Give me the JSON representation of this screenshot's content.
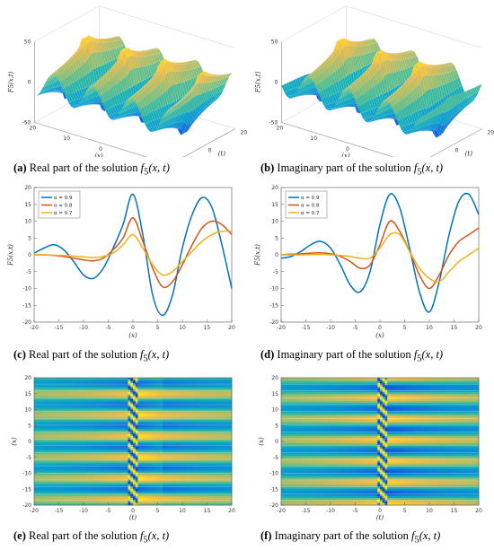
{
  "captions": {
    "a": {
      "tag": "(a)",
      "text": "Real part of the solution",
      "fx": "f",
      "sub": "5",
      "args": "(x, t)"
    },
    "b": {
      "tag": "(b)",
      "text": "Imaginary part of the solution",
      "fx": "f",
      "sub": "5",
      "args": "(x, t)"
    },
    "c": {
      "tag": "(c)",
      "text": "Real part of the solution",
      "fx": "f",
      "sub": "5",
      "args": "(x, t)"
    },
    "d": {
      "tag": "(d)",
      "text": "Imaginary part of the solution",
      "fx": "f",
      "sub": "5",
      "args": "(x, t)"
    },
    "e": {
      "tag": "(e)",
      "text": "Real part of the solution",
      "fx": "f",
      "sub": "5",
      "args": "(x, t)"
    },
    "f": {
      "tag": "(f)",
      "text": "Imaginary part of the solution",
      "fx": "f",
      "sub": "5",
      "args": "(x, t)"
    }
  },
  "chart_data": [
    {
      "id": "a",
      "type": "surface",
      "zlabel": "F5(x,t)",
      "xlabel": "(x)",
      "ylabel": "(t)",
      "zticks": [
        "50",
        "0",
        "-50"
      ],
      "xticks": [
        "20",
        "10",
        "0",
        "-10",
        "-20"
      ],
      "yticks": [
        "-20",
        "0",
        "20"
      ],
      "zlim": [
        -50,
        50
      ]
    },
    {
      "id": "b",
      "type": "surface",
      "zlabel": "F5(x,t)",
      "xlabel": "(x)",
      "ylabel": "(t)",
      "zticks": [
        "50",
        "0",
        "-50"
      ],
      "xticks": [
        "20",
        "10",
        "0",
        "-10",
        "-20"
      ],
      "yticks": [
        "-20",
        "0",
        "20"
      ],
      "zlim": [
        -50,
        50
      ]
    },
    {
      "id": "c",
      "type": "line",
      "xlabel": "(x)",
      "ylabel": "F5(x,t)",
      "xlim": [
        -20,
        20
      ],
      "ylim": [
        -20,
        20
      ],
      "xticks": [
        "-20",
        "-15",
        "-10",
        "-5",
        "0",
        "5",
        "10",
        "15",
        "20"
      ],
      "yticks": [
        "20",
        "15",
        "10",
        "5",
        "0",
        "-5",
        "-10",
        "-15",
        "-20"
      ],
      "legend": "top-left",
      "series": [
        {
          "name": "α = 0.9",
          "color": "#0072BD",
          "x": [
            -20,
            -18,
            -16,
            -14,
            -12,
            -10,
            -8,
            -6,
            -4,
            -2,
            0,
            2,
            4,
            6,
            8,
            10,
            12,
            14,
            16,
            18,
            20
          ],
          "y": [
            0.5,
            2,
            3,
            1.5,
            -2,
            -6,
            -7,
            -4,
            2,
            9,
            18,
            6,
            -12,
            -18,
            -12,
            2,
            12,
            17,
            14,
            3,
            -10
          ]
        },
        {
          "name": "α = 0.8",
          "color": "#D95319",
          "x": [
            -20,
            -18,
            -16,
            -14,
            -12,
            -10,
            -8,
            -6,
            -4,
            -2,
            0,
            2,
            4,
            6,
            8,
            10,
            12,
            14,
            16,
            18,
            20
          ],
          "y": [
            0,
            0,
            -0.2,
            -0.5,
            -1,
            -1.5,
            -1.8,
            -1,
            1.5,
            5,
            11,
            4,
            -4,
            -9.5,
            -8,
            -3,
            3,
            8,
            10,
            9,
            6
          ]
        },
        {
          "name": "α = 0.7",
          "color": "#EDB120",
          "x": [
            -20,
            -18,
            -16,
            -14,
            -12,
            -10,
            -8,
            -6,
            -4,
            -2,
            0,
            2,
            4,
            6,
            8,
            10,
            12,
            14,
            16,
            18,
            20
          ],
          "y": [
            0,
            0,
            -0.1,
            -0.2,
            -0.4,
            -0.6,
            -0.8,
            -0.5,
            0.5,
            3,
            6,
            2,
            -3,
            -6,
            -5,
            -2,
            1,
            4,
            6,
            7,
            7
          ]
        }
      ]
    },
    {
      "id": "d",
      "type": "line",
      "xlabel": "(x)",
      "ylabel": "F5(x,t)",
      "xlim": [
        -20,
        20
      ],
      "ylim": [
        -20,
        20
      ],
      "xticks": [
        "-20",
        "-15",
        "-10",
        "-5",
        "0",
        "5",
        "10",
        "15",
        "20"
      ],
      "yticks": [
        "20",
        "15",
        "10",
        "5",
        "0",
        "-5",
        "-10",
        "-15",
        "-20"
      ],
      "legend": "top-left",
      "series": [
        {
          "name": "α = 0.9",
          "color": "#0072BD",
          "x": [
            -20,
            -18,
            -16,
            -14,
            -12,
            -10,
            -8,
            -6,
            -4,
            -2,
            0,
            2,
            4,
            6,
            8,
            10,
            12,
            14,
            16,
            18,
            20
          ],
          "y": [
            -1,
            -0.5,
            1,
            3,
            4,
            2,
            -3,
            -9,
            -11,
            -5,
            9,
            18,
            14,
            2,
            -11,
            -17,
            -8,
            6,
            16,
            18,
            12
          ]
        },
        {
          "name": "α = 0.8",
          "color": "#D95319",
          "x": [
            -20,
            -18,
            -16,
            -14,
            -12,
            -10,
            -8,
            -6,
            -4,
            -2,
            0,
            2,
            4,
            6,
            8,
            10,
            12,
            14,
            16,
            18,
            20
          ],
          "y": [
            0,
            0.2,
            0.3,
            0.5,
            0.6,
            0.3,
            -0.5,
            -2,
            -4,
            -3,
            3,
            10,
            7,
            1,
            -6,
            -10,
            -6,
            0,
            4,
            6,
            8
          ]
        },
        {
          "name": "α = 0.7",
          "color": "#EDB120",
          "x": [
            -20,
            -18,
            -16,
            -14,
            -12,
            -10,
            -8,
            -6,
            -4,
            -2,
            0,
            2,
            4,
            6,
            8,
            10,
            12,
            14,
            16,
            18,
            20
          ],
          "y": [
            0,
            0,
            0,
            0.1,
            0.1,
            0,
            -0.2,
            -0.5,
            -1,
            -1,
            2,
            6,
            6,
            1,
            -4,
            -7,
            -8,
            -5,
            -2,
            0,
            2
          ]
        }
      ]
    },
    {
      "id": "e",
      "type": "contour",
      "xlabel": "(t)",
      "ylabel": "(x)",
      "xlim": [
        -20,
        20
      ],
      "ylim": [
        -20,
        20
      ],
      "xticks": [
        "-20",
        "-15",
        "-10",
        "-5",
        "0",
        "5",
        "10",
        "15",
        "20"
      ],
      "yticks": [
        "20",
        "15",
        "10",
        "5",
        "0",
        "-5",
        "-10",
        "-15",
        "-20"
      ]
    },
    {
      "id": "f",
      "type": "contour",
      "xlabel": "(t)",
      "ylabel": "(x)",
      "xlim": [
        -20,
        20
      ],
      "ylim": [
        -20,
        20
      ],
      "xticks": [
        "-20",
        "-15",
        "-10",
        "-5",
        "0",
        "5",
        "10",
        "15",
        "20"
      ],
      "yticks": [
        "20",
        "15",
        "10",
        "5",
        "0",
        "-5",
        "-10",
        "-15",
        "-20"
      ]
    }
  ]
}
